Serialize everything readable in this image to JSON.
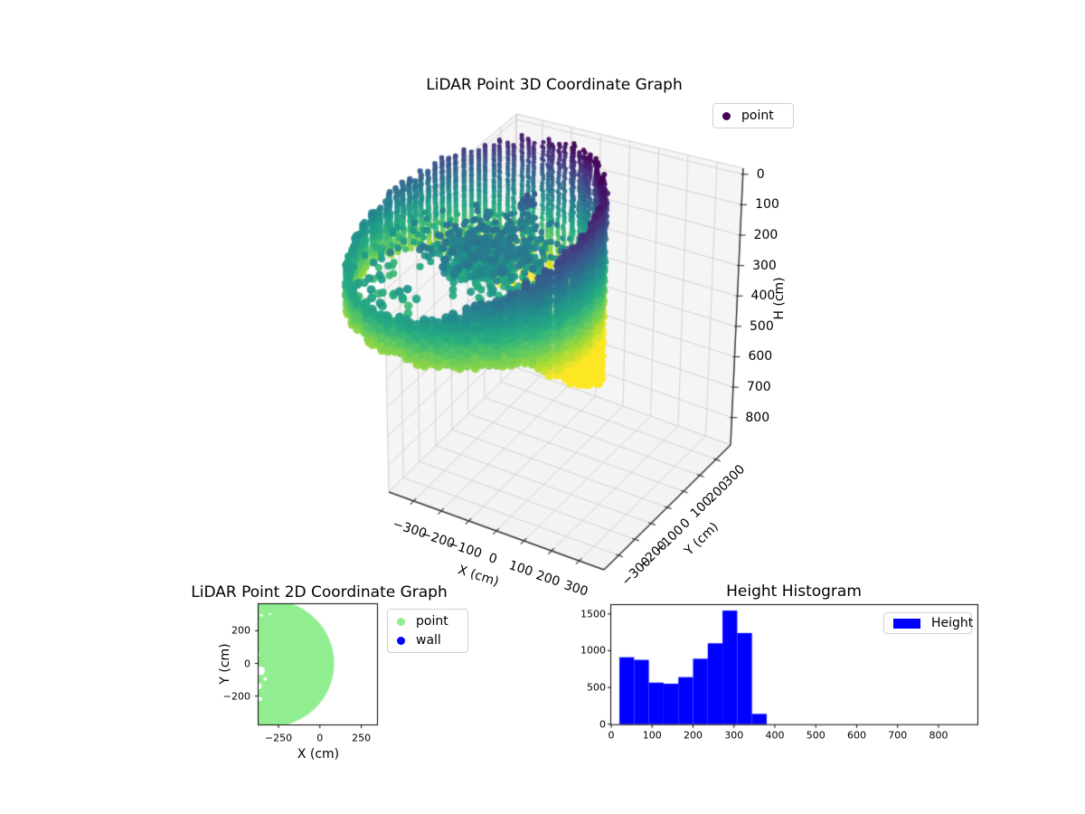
{
  "figure": {
    "background": "#ffffff"
  },
  "chart_data": [
    {
      "type": "scatter3d",
      "title": "LiDAR Point 3D Coordinate Graph",
      "xlabel": "X (cm)",
      "ylabel": "Y (cm)",
      "zlabel": "H (cm)",
      "xlim": [
        -390,
        390
      ],
      "ylim": [
        -390,
        390
      ],
      "zlim": [
        -20,
        890
      ],
      "z_axis_direction": "downward",
      "xticks": [
        -300,
        -200,
        -100,
        0,
        100,
        200,
        300
      ],
      "yticks": [
        -300,
        -200,
        -100,
        0,
        100,
        200,
        300
      ],
      "zticks": [
        0,
        100,
        200,
        300,
        400,
        500,
        600,
        700,
        800
      ],
      "legend": [
        {
          "label": "point",
          "marker_color": "#440154"
        }
      ],
      "colormap": "viridis",
      "color_by": "H (cm)",
      "color_domain": [
        20,
        500
      ],
      "grid": true,
      "point_cloud": {
        "wall_ring": {
          "center_x": -305,
          "center_y": 0,
          "radius": 385,
          "radius_jitter": 14,
          "columns": 109,
          "theta_step_deg": 3.3,
          "top_h_base": 165,
          "top_h_amplitude": 145,
          "top_h_min_angle_deg": 55,
          "top_h_jitter": 30,
          "bottom_h_base": 420,
          "bottom_h_bulge": 300,
          "h_step": 11
        },
        "inner_cluster": {
          "center_x": -270,
          "center_y": 40,
          "sigma_x": 95,
          "sigma_y": 75,
          "count": 650,
          "h_min": 200,
          "h_max": 330
        },
        "sparse_points": {
          "center_x": -305,
          "center_y": 0,
          "radius_min": 240,
          "radius_max": 370,
          "theta_min_deg": 95,
          "theta_max_deg": 265,
          "count": 85,
          "h_min": 270,
          "h_max": 350
        },
        "pillar": {
          "center_x": -250,
          "center_y": 220,
          "sigma": 12,
          "count": 60,
          "h_min": 140,
          "h_max": 380
        }
      }
    },
    {
      "type": "scatter",
      "title": "LiDAR Point 2D Coordinate Graph",
      "xlabel": "X (cm)",
      "ylabel": "Y (cm)",
      "xlim": [
        -370,
        345
      ],
      "ylim": [
        -374,
        363
      ],
      "xticks": [
        -250,
        0,
        250
      ],
      "yticks": [
        -200,
        0,
        200
      ],
      "legend": [
        {
          "label": "point",
          "marker_color": "#90EE90"
        },
        {
          "label": "wall",
          "marker_color": "#0000FF"
        }
      ],
      "point_region": {
        "shape": "disc",
        "center_x": -302,
        "center_y": 0,
        "radius": 388,
        "color": "#90EE90",
        "holes": [
          {
            "x": -358,
            "y": -45,
            "r": 26
          },
          {
            "x": -372,
            "y": -140,
            "r": 20
          },
          {
            "x": -362,
            "y": -218,
            "r": 13
          },
          {
            "x": -330,
            "y": -95,
            "r": 11
          },
          {
            "x": -372,
            "y": 55,
            "r": 9
          },
          {
            "x": -352,
            "y": 295,
            "r": 9
          },
          {
            "x": -302,
            "y": 303,
            "r": 7
          }
        ]
      }
    },
    {
      "type": "histogram",
      "title": "Height Histogram",
      "legend": [
        {
          "label": "Height",
          "color": "#0000FF"
        }
      ],
      "bar_color": "#0000FF",
      "bin_edges": [
        20,
        56,
        92,
        128,
        164,
        200,
        236,
        272,
        308,
        344,
        380
      ],
      "counts": [
        910,
        875,
        565,
        550,
        640,
        890,
        1100,
        1545,
        1240,
        140
      ],
      "xlim": [
        0,
        895
      ],
      "ylim": [
        0,
        1620
      ],
      "xticks": [
        0,
        100,
        200,
        300,
        400,
        500,
        600,
        700,
        800
      ],
      "yticks": [
        0,
        500,
        1000,
        1500
      ]
    }
  ]
}
